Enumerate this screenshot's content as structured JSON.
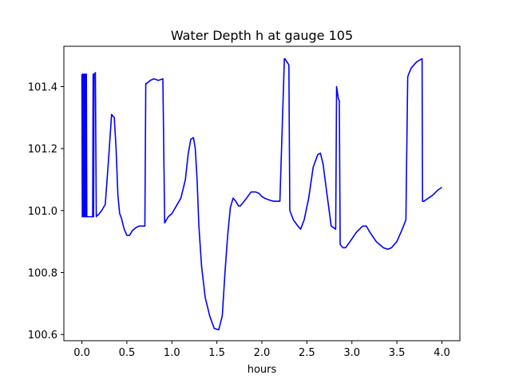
{
  "chart_data": {
    "type": "line",
    "title": "Water Depth h at gauge 105",
    "xlabel": "hours",
    "ylabel": "",
    "xlim": [
      -0.2,
      4.2
    ],
    "ylim": [
      100.58,
      101.53
    ],
    "xticks": [
      0.0,
      0.5,
      1.0,
      1.5,
      2.0,
      2.5,
      3.0,
      3.5,
      4.0
    ],
    "xtick_labels": [
      "0.0",
      "0.5",
      "1.0",
      "1.5",
      "2.0",
      "2.5",
      "3.0",
      "3.5",
      "4.0"
    ],
    "yticks": [
      100.6,
      100.8,
      101.0,
      101.2,
      101.4
    ],
    "ytick_labels": [
      "100.6",
      "100.8",
      "101.0",
      "101.2",
      "101.4"
    ],
    "grid": false,
    "series": [
      {
        "color": "#0000ff",
        "x": [
          0.0,
          0.005,
          0.01,
          0.015,
          0.02,
          0.025,
          0.03,
          0.035,
          0.04,
          0.045,
          0.05,
          0.055,
          0.06,
          0.065,
          0.07,
          0.075,
          0.08,
          0.09,
          0.1,
          0.11,
          0.12,
          0.125,
          0.13,
          0.135,
          0.14,
          0.15,
          0.16,
          0.17,
          0.18,
          0.22,
          0.26,
          0.3,
          0.33,
          0.36,
          0.38,
          0.4,
          0.42,
          0.44,
          0.47,
          0.5,
          0.53,
          0.56,
          0.6,
          0.64,
          0.7,
          0.71,
          0.72,
          0.76,
          0.8,
          0.85,
          0.9,
          0.92,
          0.93,
          0.96,
          1.0,
          1.05,
          1.1,
          1.15,
          1.18,
          1.21,
          1.24,
          1.26,
          1.28,
          1.3,
          1.33,
          1.37,
          1.42,
          1.47,
          1.52,
          1.56,
          1.59,
          1.62,
          1.65,
          1.68,
          1.71,
          1.74,
          1.76,
          1.79,
          1.83,
          1.88,
          1.93,
          1.97,
          2.0,
          2.03,
          2.07,
          2.13,
          2.2,
          2.25,
          2.255,
          2.3,
          2.31,
          2.35,
          2.4,
          2.43,
          2.47,
          2.52,
          2.57,
          2.62,
          2.65,
          2.68,
          2.72,
          2.77,
          2.82,
          2.83,
          2.85,
          2.86,
          2.87,
          2.9,
          2.93,
          2.98,
          3.05,
          3.12,
          3.16,
          3.2,
          3.27,
          3.35,
          3.4,
          3.44,
          3.5,
          3.56,
          3.6,
          3.62,
          3.63,
          3.66,
          3.72,
          3.78,
          3.785,
          3.8,
          3.85,
          3.9,
          3.95,
          4.0
        ],
        "values": [
          101.44,
          100.98,
          101.44,
          100.98,
          101.44,
          100.98,
          101.44,
          100.98,
          101.44,
          100.98,
          101.44,
          100.98,
          100.98,
          100.98,
          100.98,
          100.98,
          100.98,
          100.98,
          100.98,
          100.98,
          100.98,
          101.44,
          100.98,
          101.44,
          101.44,
          101.445,
          100.98,
          100.985,
          100.985,
          101.0,
          101.02,
          101.18,
          101.31,
          101.3,
          101.2,
          101.05,
          100.99,
          100.975,
          100.94,
          100.92,
          100.92,
          100.935,
          100.945,
          100.95,
          100.95,
          101.41,
          101.41,
          101.42,
          101.425,
          101.42,
          101.425,
          100.96,
          100.965,
          100.98,
          100.99,
          101.015,
          101.04,
          101.1,
          101.18,
          101.23,
          101.235,
          101.2,
          101.1,
          100.95,
          100.82,
          100.72,
          100.66,
          100.62,
          100.615,
          100.66,
          100.8,
          100.92,
          101.01,
          101.04,
          101.03,
          101.015,
          101.015,
          101.025,
          101.04,
          101.06,
          101.06,
          101.055,
          101.045,
          101.04,
          101.035,
          101.03,
          101.03,
          101.49,
          101.49,
          101.47,
          101.0,
          100.97,
          100.95,
          100.94,
          100.97,
          101.04,
          101.14,
          101.18,
          101.185,
          101.15,
          101.06,
          100.95,
          100.94,
          101.4,
          101.36,
          101.355,
          100.89,
          100.88,
          100.88,
          100.9,
          100.93,
          100.95,
          100.95,
          100.93,
          100.9,
          100.88,
          100.875,
          100.88,
          100.9,
          100.94,
          100.97,
          101.43,
          101.44,
          101.46,
          101.48,
          101.49,
          101.03,
          101.03,
          101.04,
          101.05,
          101.065,
          101.075
        ]
      }
    ]
  }
}
